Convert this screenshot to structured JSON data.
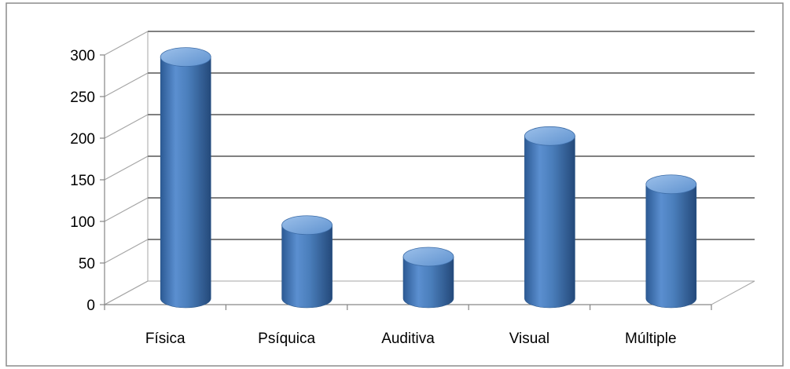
{
  "chart_data": {
    "type": "bar",
    "style": "3d-cylinder",
    "title": "",
    "xlabel": "",
    "ylabel": "",
    "categories": [
      "Física",
      "Psíquica",
      "Auditiva",
      "Visual",
      "Múltiple"
    ],
    "values": [
      290,
      88,
      50,
      195,
      137
    ],
    "ylim": [
      0,
      300
    ],
    "yticks": [
      0,
      50,
      100,
      150,
      200,
      250,
      300
    ],
    "grid": true,
    "legend": "none",
    "colors": {
      "bar": "#4a7ebb",
      "bar_dark": "#2c5a94",
      "bar_light": "#8fb4e3",
      "grid": "#808080",
      "axis": "#868686",
      "border": "#8c8c8c"
    }
  }
}
